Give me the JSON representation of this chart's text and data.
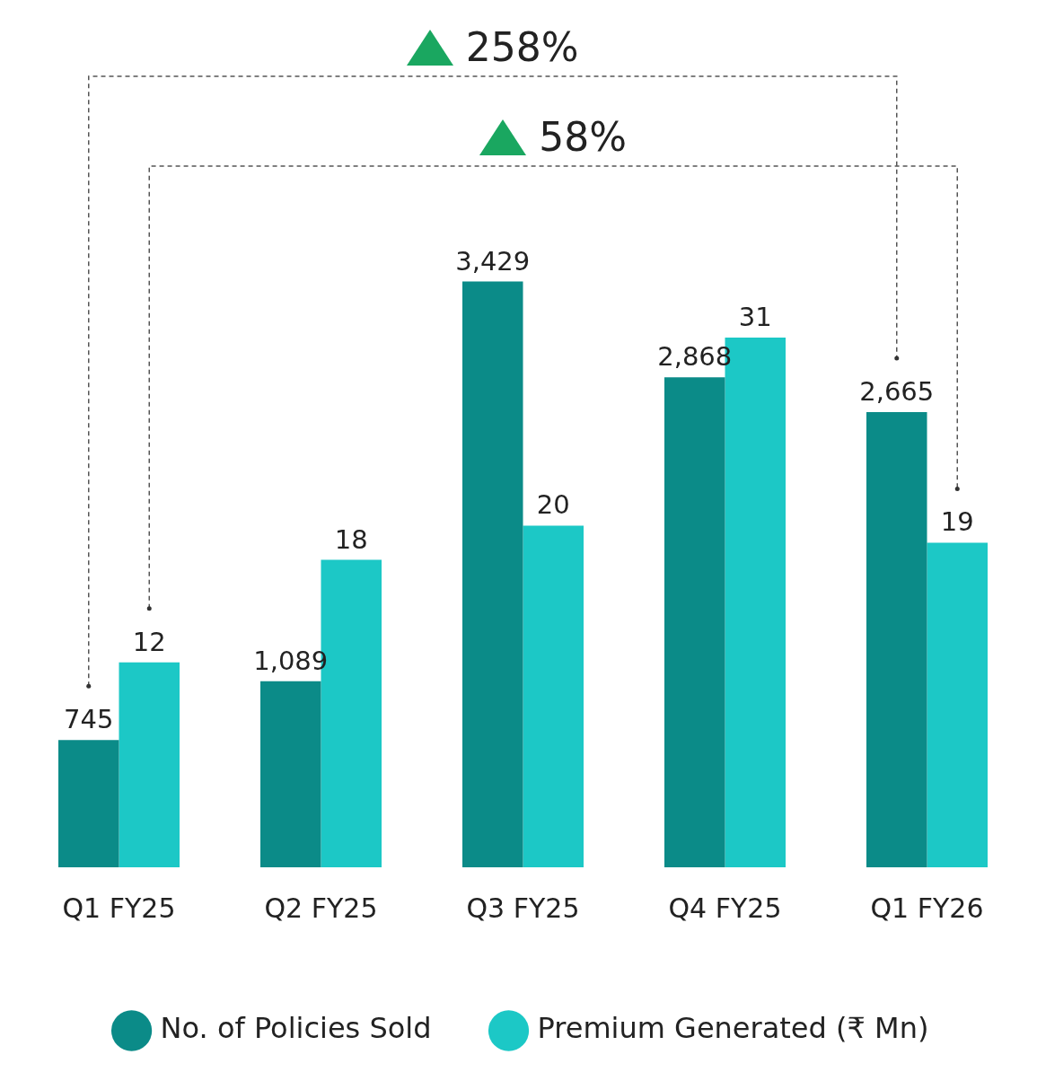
{
  "chart_data": {
    "type": "bar",
    "categories": [
      "Q1 FY25",
      "Q2 FY25",
      "Q3 FY25",
      "Q4 FY25",
      "Q1 FY26"
    ],
    "series": [
      {
        "name": "No. of Policies Sold",
        "color": "#0b8b88",
        "values": [
          745,
          1089,
          3429,
          2868,
          2665
        ],
        "value_labels": [
          "745",
          "1,089",
          "3,429",
          "2,868",
          "2,665"
        ]
      },
      {
        "name": "Premium Generated (₹ Mn)",
        "color": "#1cc8c6",
        "axis": "y2",
        "values": [
          12,
          18,
          20,
          31,
          19
        ],
        "value_labels": [
          "12",
          "18",
          "20",
          "31",
          "19"
        ]
      }
    ],
    "tick_labels": "x",
    "legend": "bottom",
    "annotations": [
      "258%",
      "58%"
    ]
  }
}
